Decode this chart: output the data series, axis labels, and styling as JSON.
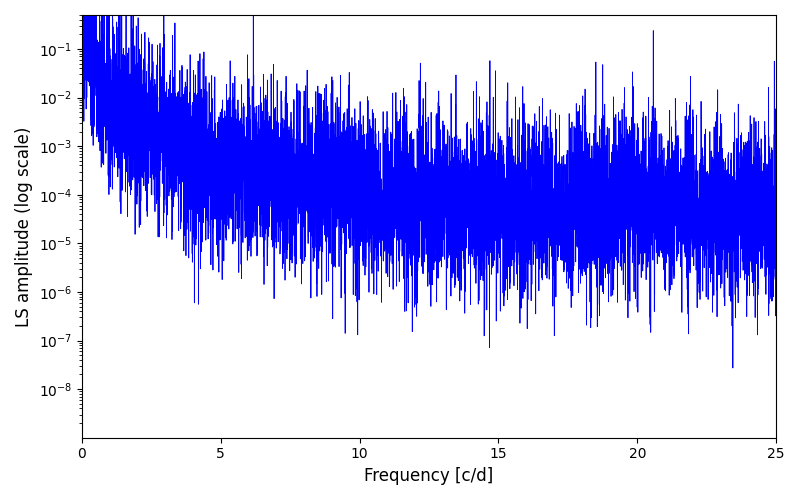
{
  "line_color": "#0000ff",
  "xlabel": "Frequency [c/d]",
  "ylabel": "LS amplitude (log scale)",
  "xlim": [
    0,
    25
  ],
  "ylim": [
    1e-09,
    0.5
  ],
  "background_color": "#ffffff",
  "figsize": [
    8.0,
    5.0
  ],
  "dpi": 100,
  "yscale": "log",
  "linewidth": 0.6,
  "seed": 77,
  "n_points": 8000,
  "yticks": [
    1e-08,
    1e-07,
    1e-06,
    1e-05,
    0.0001,
    0.001,
    0.01,
    0.1
  ]
}
